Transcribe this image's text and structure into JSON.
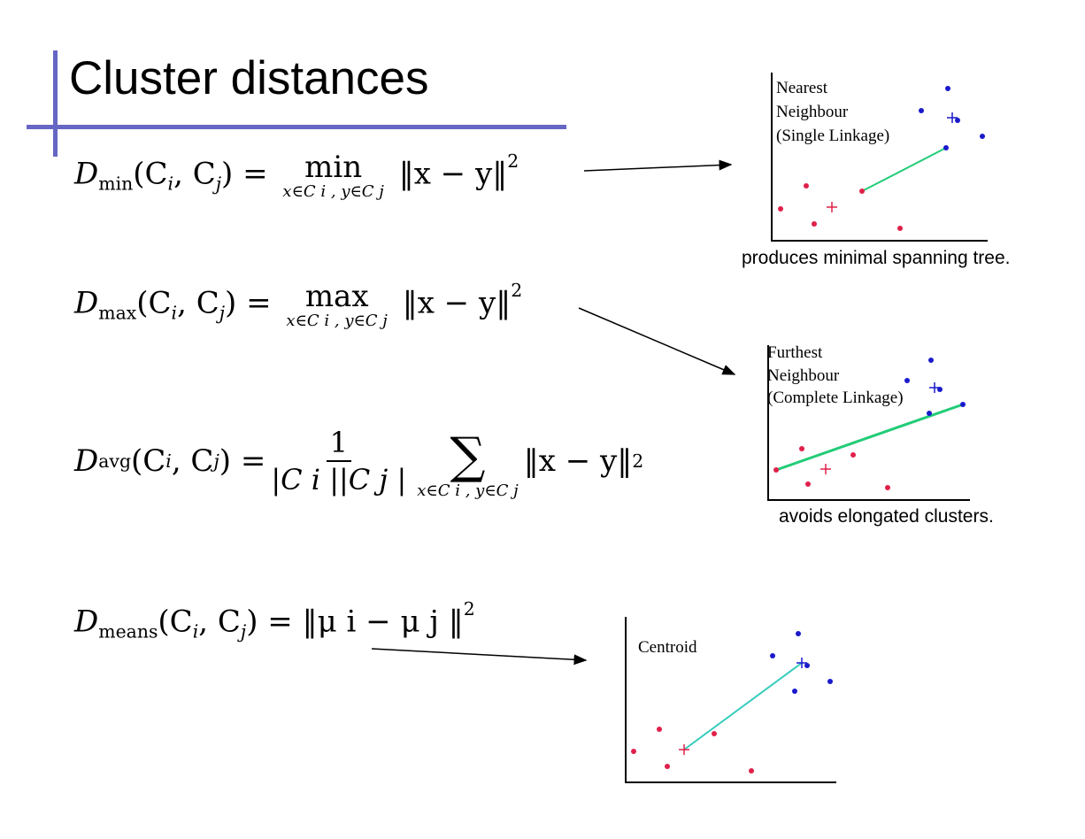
{
  "slide": {
    "title": "Cluster distances"
  },
  "formulas": {
    "dmin": {
      "lhs": "D",
      "lhs_sub": "min",
      "args": "(C",
      "i": "i",
      "comma": ", C",
      "j": "j",
      "close": ") =",
      "op": "min",
      "under": "x∈C i ,  y∈C j",
      "rhs": "‖x − y‖",
      "pow": "2"
    },
    "dmax": {
      "lhs": "D",
      "lhs_sub": "max",
      "args": "(C",
      "i": "i",
      "comma": ", C",
      "j": "j",
      "close": ") =",
      "op": "max",
      "under": "x∈C i ,  y∈C j",
      "rhs": "‖x − y‖",
      "pow": "2"
    },
    "davg": {
      "lhs": "D",
      "lhs_sub": "avg",
      "args": "(C",
      "i": "i",
      "comma": ", C",
      "j": "j",
      "close": ") =",
      "num": "1",
      "den": "|C i ||C j |",
      "op": "∑",
      "under": "x∈C i ,  y∈C j",
      "rhs": "‖x − y‖",
      "pow": "2"
    },
    "dmeans": {
      "lhs": "D",
      "lhs_sub": "means",
      "args": "(C",
      "i": "i",
      "comma": ", C",
      "j": "j",
      "close": ") =",
      "rhs": "‖μ i − μ j ‖",
      "pow": "2"
    }
  },
  "plots": {
    "nearest": {
      "label_lines": [
        "Nearest",
        "Neighbour",
        "(Single Linkage)"
      ],
      "caption": "produces minimal spanning tree."
    },
    "furthest": {
      "label_lines": [
        "Furthest",
        "Neighbour",
        "(Complete Linkage)"
      ],
      "caption": "avoids elongated clusters."
    },
    "centroid": {
      "label_lines": [
        "Centroid"
      ]
    }
  },
  "colors": {
    "accent_bar": "#6666c4",
    "red_points": "#e0204a",
    "blue_points": "#1a1acc",
    "link_green": "#22cc77",
    "link_cyan": "#33ccbb"
  }
}
